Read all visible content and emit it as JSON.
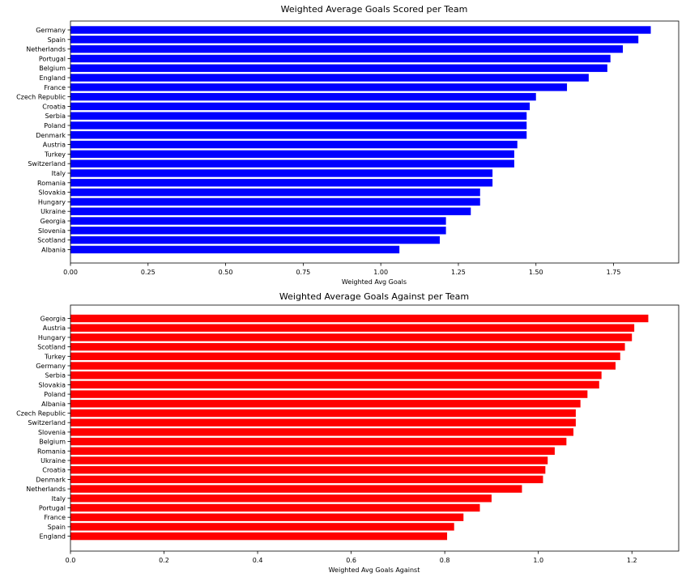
{
  "chart_data": [
    {
      "type": "bar",
      "orientation": "horizontal",
      "title": "Weighted Average Goals Scored per Team",
      "xlabel": "Weighted Avg Goals",
      "ylabel": "",
      "xlim": [
        0,
        1.96
      ],
      "xticks": [
        0.0,
        0.25,
        0.5,
        0.75,
        1.0,
        1.25,
        1.5,
        1.75
      ],
      "xtick_labels": [
        "0.00",
        "0.25",
        "0.50",
        "0.75",
        "1.00",
        "1.25",
        "1.50",
        "1.75"
      ],
      "color": "#0000ff",
      "grid": false,
      "categories": [
        "Germany",
        "Spain",
        "Netherlands",
        "Portugal",
        "Belgium",
        "England",
        "France",
        "Czech Republic",
        "Croatia",
        "Serbia",
        "Poland",
        "Denmark",
        "Austria",
        "Turkey",
        "Switzerland",
        "Italy",
        "Romania",
        "Slovakia",
        "Hungary",
        "Ukraine",
        "Georgia",
        "Slovenia",
        "Scotland",
        "Albania"
      ],
      "values": [
        1.87,
        1.83,
        1.78,
        1.74,
        1.73,
        1.67,
        1.6,
        1.5,
        1.48,
        1.47,
        1.47,
        1.47,
        1.44,
        1.43,
        1.43,
        1.36,
        1.36,
        1.32,
        1.32,
        1.29,
        1.21,
        1.21,
        1.19,
        1.06
      ]
    },
    {
      "type": "bar",
      "orientation": "horizontal",
      "title": "Weighted Average Goals Against per Team",
      "xlabel": "Weighted Avg Goals Against",
      "ylabel": "",
      "xlim": [
        0,
        1.3
      ],
      "xticks": [
        0.0,
        0.2,
        0.4,
        0.6,
        0.8,
        1.0,
        1.2
      ],
      "xtick_labels": [
        "0.0",
        "0.2",
        "0.4",
        "0.6",
        "0.8",
        "1.0",
        "1.2"
      ],
      "color": "#ff0000",
      "grid": false,
      "categories": [
        "Georgia",
        "Austria",
        "Hungary",
        "Scotland",
        "Turkey",
        "Germany",
        "Serbia",
        "Slovakia",
        "Poland",
        "Albania",
        "Czech Republic",
        "Switzerland",
        "Slovenia",
        "Belgium",
        "Romania",
        "Ukraine",
        "Croatia",
        "Denmark",
        "Netherlands",
        "Italy",
        "Portugal",
        "France",
        "Spain",
        "England"
      ],
      "values": [
        1.235,
        1.205,
        1.2,
        1.185,
        1.175,
        1.165,
        1.135,
        1.13,
        1.105,
        1.09,
        1.08,
        1.08,
        1.075,
        1.06,
        1.035,
        1.02,
        1.015,
        1.01,
        0.965,
        0.9,
        0.875,
        0.84,
        0.82,
        0.805
      ]
    }
  ]
}
